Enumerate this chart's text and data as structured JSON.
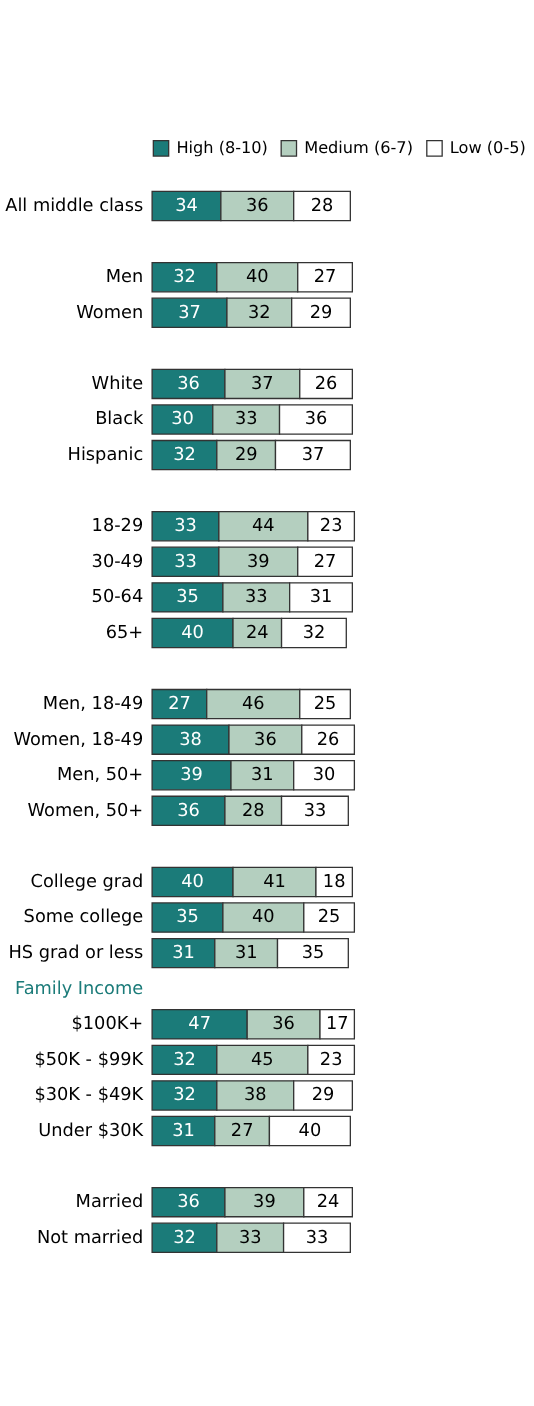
{
  "chart_data": {
    "type": "bar",
    "orientation": "horizontal",
    "stacked": true,
    "data_labels": true,
    "legend": "top",
    "grid": false,
    "categories": [
      "All middle class",
      null,
      "Men",
      "Women",
      null,
      "White",
      "Black",
      "Hispanic",
      null,
      "18-29",
      "30-49",
      "50-64",
      "65+",
      null,
      "Men, 18-49",
      "Women, 18-49",
      "Men, 50+",
      "Women, 50+",
      null,
      "College grad",
      "Some college",
      "HS grad or less",
      "Family Income",
      "$100K+",
      "$50K - $99K",
      "$30K - $49K",
      "Under $30K",
      null,
      "Married",
      "Not married"
    ],
    "series": [
      {
        "name": "High (8-10)",
        "color": "#1b7b79",
        "values": [
          34,
          null,
          32,
          37,
          null,
          36,
          30,
          32,
          null,
          33,
          33,
          35,
          40,
          null,
          27,
          38,
          39,
          36,
          null,
          40,
          35,
          31,
          null,
          47,
          32,
          32,
          31,
          null,
          36,
          32
        ]
      },
      {
        "name": "Medium (6-7)",
        "color": "#b4cfbf",
        "values": [
          36,
          null,
          40,
          32,
          null,
          37,
          33,
          29,
          null,
          44,
          39,
          33,
          24,
          null,
          46,
          36,
          31,
          28,
          null,
          41,
          40,
          31,
          null,
          36,
          45,
          38,
          27,
          null,
          39,
          33
        ]
      },
      {
        "name": "Low (0-5)",
        "color": "#ffffff",
        "values": [
          28,
          null,
          27,
          29,
          null,
          26,
          36,
          37,
          null,
          23,
          27,
          31,
          32,
          null,
          25,
          26,
          30,
          33,
          null,
          18,
          25,
          35,
          null,
          17,
          23,
          29,
          40,
          null,
          24,
          33
        ]
      }
    ]
  }
}
